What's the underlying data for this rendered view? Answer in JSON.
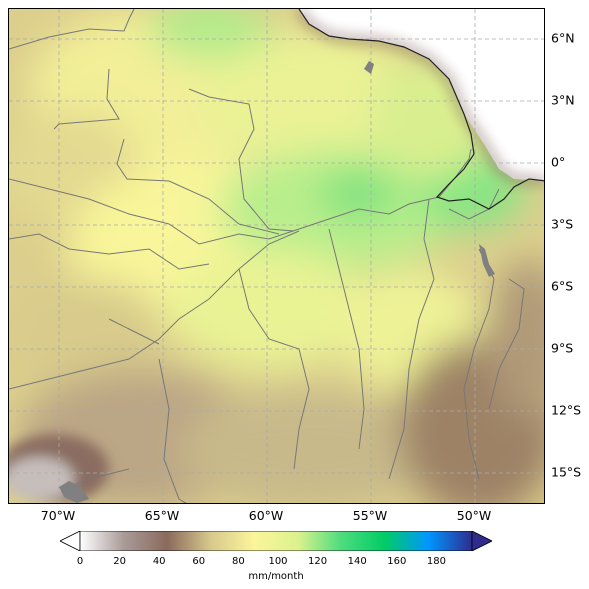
{
  "map": {
    "lat_labels": [
      "6°N",
      "3°N",
      "0°",
      "3°S",
      "6°S",
      "9°S",
      "12°S",
      "15°S"
    ],
    "lon_labels": [
      "70°W",
      "65°W",
      "60°W",
      "55°W",
      "50°W"
    ]
  },
  "colorbar": {
    "ticks": [
      "0",
      "20",
      "40",
      "60",
      "80",
      "100",
      "120",
      "140",
      "160",
      "180"
    ],
    "unit": "mm/month",
    "colors": [
      "#ffffff",
      "#a99b98",
      "#8a6a5c",
      "#d7c98c",
      "#fbf59a",
      "#dcf28e",
      "#4ddc7e",
      "#00cc66",
      "#0096ff",
      "#2f2c8e"
    ]
  }
}
